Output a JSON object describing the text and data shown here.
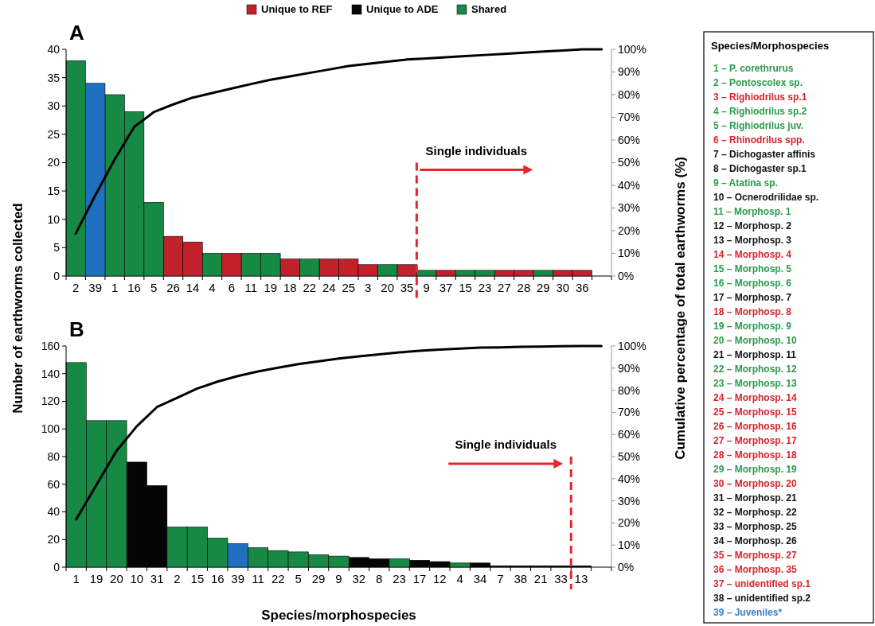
{
  "chart_data": [
    {
      "type": "bar",
      "title": "A",
      "ylabel": "Number of earthworms collected",
      "y2label": "Cumulative percentage of total earthworms (%)",
      "legend": "top",
      "categories": [
        "2",
        "39",
        "1",
        "16",
        "5",
        "26",
        "14",
        "4",
        "6",
        "11",
        "19",
        "18",
        "22",
        "24",
        "25",
        "3",
        "20",
        "35",
        "9",
        "37",
        "15",
        "23",
        "27",
        "28",
        "29",
        "30",
        "36",
        null
      ],
      "series": [
        {
          "name": "Unique to REF",
          "color": "#c0212b",
          "values": [
            null,
            null,
            null,
            null,
            null,
            7,
            6,
            null,
            4,
            null,
            null,
            3,
            null,
            3,
            3,
            2,
            null,
            2,
            null,
            1,
            null,
            null,
            1,
            1,
            null,
            1,
            1,
            null
          ]
        },
        {
          "name": "Unique to ADE",
          "color": "#050505",
          "values": [
            null,
            null,
            null,
            null,
            null,
            null,
            null,
            null,
            null,
            null,
            null,
            null,
            null,
            null,
            null,
            null,
            null,
            null,
            null,
            null,
            null,
            null,
            null,
            null,
            null,
            null,
            null,
            null
          ]
        },
        {
          "name": "Shared",
          "color": "#168a45",
          "values": [
            38,
            null,
            32,
            29,
            13,
            null,
            null,
            4,
            null,
            4,
            4,
            null,
            3,
            null,
            null,
            null,
            2,
            null,
            1,
            null,
            1,
            1,
            null,
            null,
            1,
            null,
            null,
            null
          ]
        },
        {
          "color": "#2070c0",
          "values": [
            null,
            34,
            null,
            null,
            null,
            null,
            null,
            null,
            null,
            null,
            null,
            null,
            null,
            null,
            null,
            null,
            null,
            null,
            null,
            null,
            null,
            null,
            null,
            null,
            null,
            null,
            null,
            null
          ]
        },
        {
          "type": "line",
          "axis": "y2",
          "color": "#000000",
          "values": [
            18.8,
            35.6,
            51.5,
            65.8,
            72.3,
            75.7,
            78.7,
            80.7,
            82.7,
            84.7,
            86.6,
            88.1,
            89.6,
            91.1,
            92.6,
            93.6,
            94.6,
            95.5,
            96.0,
            96.5,
            97.0,
            97.5,
            98.0,
            98.5,
            99.0,
            99.5,
            100,
            100
          ]
        }
      ],
      "ylim": [
        0,
        40
      ],
      "yticks": [
        0,
        5,
        10,
        15,
        20,
        25,
        30,
        35,
        40
      ],
      "y2lim": [
        0,
        100
      ],
      "y2ticks": [
        {
          "value": 0,
          "label": "0%"
        },
        {
          "value": 10,
          "label": "10%"
        },
        {
          "value": 20,
          "label": "20%"
        },
        {
          "value": 30,
          "label": "30%"
        },
        {
          "value": 40,
          "label": "40%"
        },
        {
          "value": 50,
          "label": "50%"
        },
        {
          "value": 60,
          "label": "60%"
        },
        {
          "value": 70,
          "label": "70%"
        },
        {
          "value": 80,
          "label": "80%"
        },
        {
          "value": 90,
          "label": "90%"
        },
        {
          "value": 100,
          "label": "100%"
        }
      ],
      "ref_lines": [
        {
          "axis": "x",
          "value": "9",
          "label": "Single individuals",
          "color": "#e8252d",
          "line_style": "dashed"
        }
      ]
    },
    {
      "type": "bar",
      "title": "B",
      "xlabel": "Species/morphospecies",
      "categories": [
        "1",
        "19",
        "20",
        "10",
        "31",
        "2",
        "15",
        "16",
        "39",
        "11",
        "22",
        "5",
        "29",
        "9",
        "32",
        "8",
        "23",
        "17",
        "12",
        "4",
        "34",
        "7",
        "38",
        "21",
        "33",
        "13",
        null
      ],
      "series": [
        {
          "color": "#050505",
          "values": [
            null,
            null,
            null,
            76,
            59,
            null,
            null,
            null,
            null,
            null,
            null,
            null,
            null,
            null,
            7,
            6,
            null,
            5,
            4,
            null,
            3,
            1,
            1,
            1,
            1,
            1,
            null
          ]
        },
        {
          "color": "#168a45",
          "values": [
            148,
            106,
            106,
            null,
            null,
            29,
            29,
            21,
            null,
            14,
            12,
            11,
            9,
            8,
            null,
            null,
            6,
            null,
            null,
            3,
            null,
            null,
            null,
            null,
            null,
            null,
            null
          ]
        },
        {
          "color": "#2070c0",
          "values": [
            null,
            null,
            null,
            null,
            null,
            null,
            null,
            null,
            17,
            null,
            null,
            null,
            null,
            null,
            null,
            null,
            null,
            null,
            null,
            null,
            null,
            null,
            null,
            null,
            null,
            null,
            null
          ]
        },
        {
          "type": "line",
          "axis": "y2",
          "color": "#000000",
          "values": [
            21.6,
            37.1,
            52.6,
            63.7,
            72.4,
            76.6,
            80.8,
            83.9,
            86.4,
            88.5,
            90.2,
            91.8,
            93.1,
            94.3,
            95.3,
            96.2,
            97.1,
            97.8,
            98.4,
            98.8,
            99.3,
            99.4,
            99.6,
            99.7,
            99.9,
            100,
            100
          ]
        }
      ],
      "ylim": [
        0,
        160
      ],
      "yticks": [
        0,
        20,
        40,
        60,
        80,
        100,
        120,
        140,
        160
      ],
      "y2lim": [
        0,
        100
      ],
      "y2ticks": [
        {
          "value": 0,
          "label": "0%"
        },
        {
          "value": 10,
          "label": "10%"
        },
        {
          "value": 20,
          "label": "20%"
        },
        {
          "value": 30,
          "label": "30%"
        },
        {
          "value": 40,
          "label": "40%"
        },
        {
          "value": 50,
          "label": "50%"
        },
        {
          "value": 60,
          "label": "60%"
        },
        {
          "value": 70,
          "label": "70%"
        },
        {
          "value": 80,
          "label": "80%"
        },
        {
          "value": 90,
          "label": "90%"
        },
        {
          "value": 100,
          "label": "100%"
        }
      ],
      "ref_lines": [
        {
          "axis": "x",
          "value": "13",
          "label": "Single individuals",
          "color": "#e8252d",
          "line_style": "dashed"
        }
      ]
    },
    {
      "type": "other",
      "title": "Species/Morphospecies",
      "annotations": [
        "1 – P. corethrurus",
        "2 – Pontoscolex sp.",
        "3 – Righiodrilus sp.1",
        "4 – Righiodrilus sp.2",
        "5 – Righiodrilus juv.",
        "6 – Rhinodrilus spp.",
        "7 – Dichogaster affinis",
        "8 – Dichogaster sp.1",
        "9 – Atatina sp.",
        "10 – Ocnerodrilidae sp.",
        "11 – Morphosp. 1",
        "12 – Morphosp. 2",
        "13 – Morphosp. 3",
        "14 – Morphosp. 4",
        "15 – Morphosp. 5",
        "16 – Morphosp. 6",
        "17 – Morphosp. 7",
        "18 – Morphosp. 8",
        "19 – Morphosp. 9",
        "20 – Morphosp. 10",
        "21 – Morphosp. 11",
        "22 – Morphosp. 12",
        "23 – Morphosp. 13",
        "24 – Morphosp. 14",
        "25 – Morphosp. 15",
        "26 – Morphosp. 16",
        "27 – Morphosp. 17",
        "28 – Morphosp. 18",
        "29 – Morphosp. 19",
        "30 – Morphosp. 20",
        "31 – Morphosp. 21",
        "32 – Morphosp. 22",
        "33 – Morphosp. 25",
        "34 – Morphosp. 26",
        "35 – Morphosp. 27",
        "36 – Morphosp. 35",
        "37 – unidentified sp.1",
        "38 – unidentified sp.2",
        "39 – Juveniles*"
      ],
      "colors": [
        "#2a9a4a",
        "#2a9a4a",
        "#d8232a",
        "#2a9a4a",
        "#2a9a4a",
        "#d8232a",
        "#111111",
        "#111111",
        "#2a9a4a",
        "#111111",
        "#2a9a4a",
        "#111111",
        "#111111",
        "#d8232a",
        "#2a9a4a",
        "#2a9a4a",
        "#111111",
        "#d8232a",
        "#2a9a4a",
        "#2a9a4a",
        "#111111",
        "#2a9a4a",
        "#2a9a4a",
        "#d8232a",
        "#d8232a",
        "#d8232a",
        "#d8232a",
        "#d8232a",
        "#2a9a4a",
        "#d8232a",
        "#111111",
        "#111111",
        "#111111",
        "#111111",
        "#d8232a",
        "#d8232a",
        "#d8232a",
        "#111111",
        "#3a7fc8"
      ]
    }
  ]
}
